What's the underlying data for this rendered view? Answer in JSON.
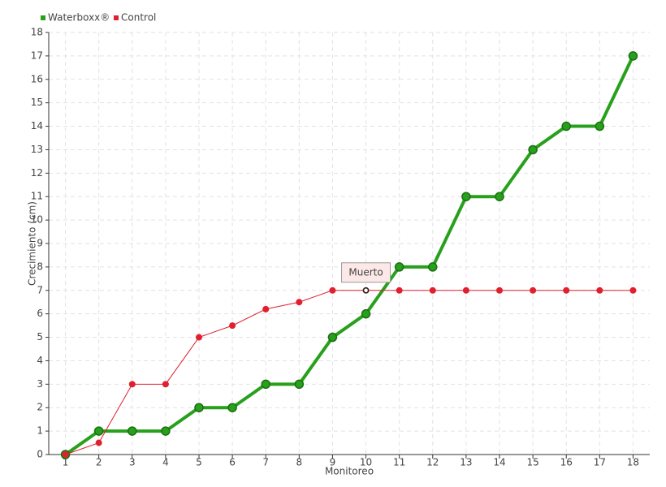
{
  "chart_data": {
    "type": "line",
    "xlabel": "Monitoreo",
    "ylabel": "Crecimiento (cm)",
    "x": [
      1,
      2,
      3,
      4,
      5,
      6,
      7,
      8,
      9,
      10,
      11,
      12,
      13,
      14,
      15,
      16,
      17,
      18
    ],
    "series": [
      {
        "name": "Waterboxx®",
        "color": "#27a01c",
        "values": [
          0,
          1,
          1,
          1,
          2,
          2,
          3,
          3,
          5,
          6,
          8,
          8,
          11,
          11,
          13,
          14,
          14,
          17
        ]
      },
      {
        "name": "Control",
        "color": "#e0202e",
        "values": [
          0,
          0.5,
          3,
          3,
          5,
          5.5,
          6.2,
          6.5,
          7,
          7,
          7,
          7,
          7,
          7,
          7,
          7,
          7,
          7
        ]
      }
    ],
    "annotations": [
      {
        "text": "Muerto",
        "x": 10,
        "y": 7
      }
    ],
    "xlim": [
      0.5,
      18.5
    ],
    "ylim": [
      0,
      18
    ],
    "xticks": [
      1,
      2,
      3,
      4,
      5,
      6,
      7,
      8,
      9,
      10,
      11,
      12,
      13,
      14,
      15,
      16,
      17,
      18
    ],
    "yticks": [
      0,
      1,
      2,
      3,
      4,
      5,
      6,
      7,
      8,
      9,
      10,
      11,
      12,
      13,
      14,
      15,
      16,
      17,
      18
    ],
    "grid": true,
    "legend": "top-left"
  }
}
